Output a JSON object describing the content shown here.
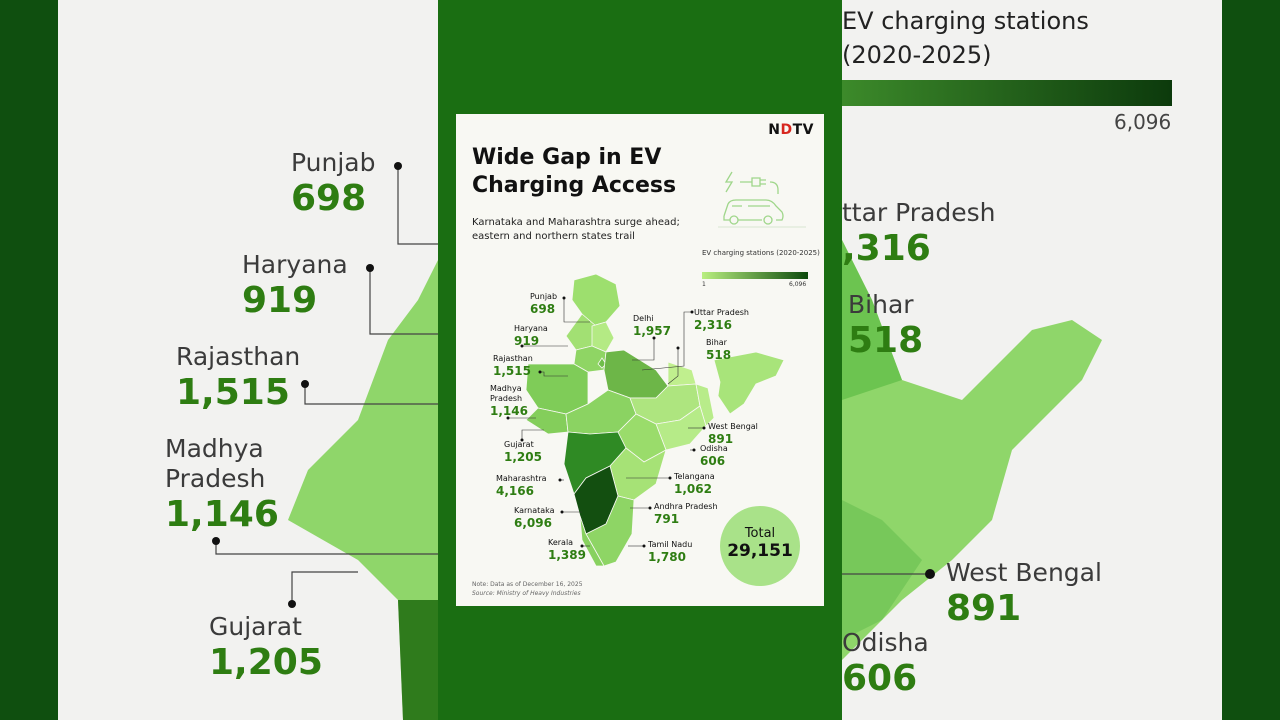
{
  "card": {
    "logo_left": "N",
    "logo_accent": "D",
    "logo_right": "TV",
    "title": "Wide Gap in EV Charging Access",
    "subtitle": "Karnataka and Maharashtra surge ahead; eastern and northern states trail",
    "legend_title": "EV charging stations (2020-2025)",
    "legend_min": "1",
    "legend_max": "6,096",
    "total_label": "Total",
    "total_value": "29,151",
    "note": "Note: Data as of December 16, 2025",
    "source": "Source: Ministry of Heavy Industries"
  },
  "states": [
    {
      "name": "Punjab",
      "value": "698"
    },
    {
      "name": "Haryana",
      "value": "919"
    },
    {
      "name": "Rajasthan",
      "value": "1,515"
    },
    {
      "name": "Madhya Pradesh",
      "value": "1,146"
    },
    {
      "name": "Gujarat",
      "value": "1,205"
    },
    {
      "name": "Maharashtra",
      "value": "4,166"
    },
    {
      "name": "Karnataka",
      "value": "6,096"
    },
    {
      "name": "Kerala",
      "value": "1,389"
    },
    {
      "name": "Delhi",
      "value": "1,957"
    },
    {
      "name": "Uttar Pradesh",
      "value": "2,316"
    },
    {
      "name": "Bihar",
      "value": "518"
    },
    {
      "name": "West Bengal",
      "value": "891"
    },
    {
      "name": "Odisha",
      "value": "606"
    },
    {
      "name": "Telangana",
      "value": "1,062"
    },
    {
      "name": "Andhra Pradesh",
      "value": "791"
    },
    {
      "name": "Tamil Nadu",
      "value": "1,780"
    }
  ],
  "bg_left_labels": [
    {
      "name": "Punjab",
      "value": "698"
    },
    {
      "name": "Haryana",
      "value": "919"
    },
    {
      "name": "Rajasthan",
      "value": "1,515"
    },
    {
      "name": "Madhya Pradesh",
      "value": "1,146"
    },
    {
      "name": "Gujarat",
      "value": "1,205"
    }
  ],
  "bg_right": {
    "legend_line1": "EV charging stations",
    "legend_line2": "(2020-2025)",
    "legend_max": "6,096",
    "labels": [
      {
        "name": "ttar Pradesh",
        "value": ",316"
      },
      {
        "name": "Bihar",
        "value": "518"
      },
      {
        "name": "West Bengal",
        "value": "891"
      },
      {
        "name": "Odisha",
        "value": "606"
      }
    ]
  },
  "colors": {
    "frame": "#0b3d0b",
    "strip": "#1a6e12",
    "value_green": "#2e7d12",
    "max_color": "#0c4a0c",
    "min_color": "#b9ef80"
  },
  "icons": [
    "ev-charging-car-icon",
    "plug-icon",
    "lightning-icon"
  ]
}
